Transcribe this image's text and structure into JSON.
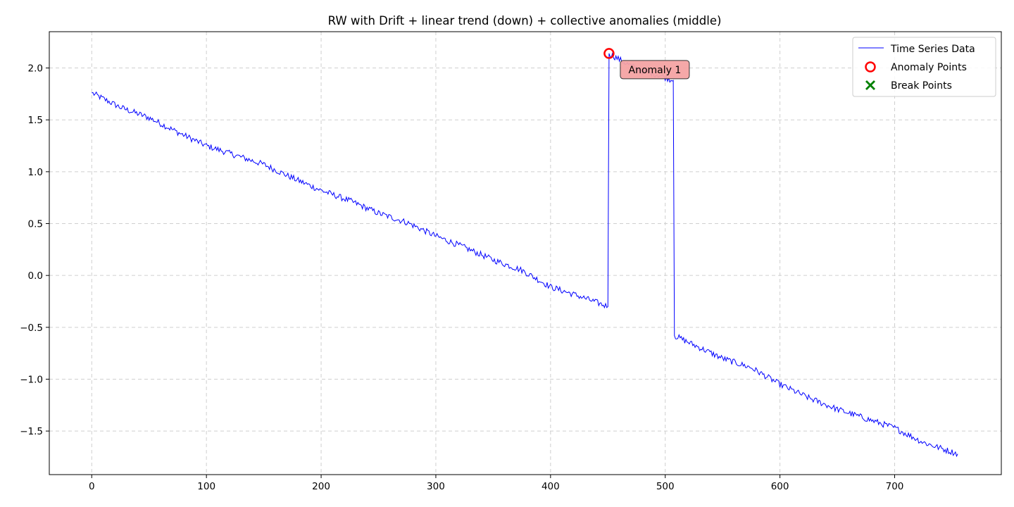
{
  "chart_data": {
    "type": "line",
    "title": "RW with Drift + linear trend (down) + collective anomalies (middle)",
    "xlabel": "",
    "ylabel": "",
    "xlim": [
      -37,
      793
    ],
    "ylim": [
      -1.92,
      2.35
    ],
    "x_ticks": [
      0,
      100,
      200,
      300,
      400,
      500,
      600,
      700
    ],
    "y_ticks": [
      -1.5,
      -1.0,
      -0.5,
      0.0,
      0.5,
      1.0,
      1.5,
      2.0
    ],
    "y_tick_labels": [
      "−1.5",
      "−1.0",
      "−0.5",
      "0.0",
      "0.5",
      "1.0",
      "1.5",
      "2.0"
    ],
    "grid": true,
    "legend_position": "top-right",
    "series": [
      {
        "name": "Time Series Data",
        "color": "#0000ff",
        "n_points": 756,
        "segments": [
          {
            "x_start": 0,
            "x_end": 450,
            "y_start": 1.73,
            "y_end": -0.3
          },
          {
            "x_start": 451,
            "x_end": 507,
            "y_start": 2.14,
            "y_end": 1.88
          },
          {
            "x_start": 508,
            "x_end": 755,
            "y_start": -0.58,
            "y_end": -1.72
          }
        ],
        "keypoints": [
          [
            0,
            1.76
          ],
          [
            25,
            1.62
          ],
          [
            50,
            1.52
          ],
          [
            75,
            1.38
          ],
          [
            100,
            1.25
          ],
          [
            125,
            1.16
          ],
          [
            150,
            1.07
          ],
          [
            175,
            0.94
          ],
          [
            200,
            0.82
          ],
          [
            225,
            0.72
          ],
          [
            250,
            0.6
          ],
          [
            275,
            0.51
          ],
          [
            300,
            0.38
          ],
          [
            325,
            0.27
          ],
          [
            350,
            0.15
          ],
          [
            375,
            0.05
          ],
          [
            400,
            -0.11
          ],
          [
            425,
            -0.2
          ],
          [
            450,
            -0.3
          ],
          [
            451,
            2.14
          ],
          [
            465,
            2.05
          ],
          [
            480,
            1.97
          ],
          [
            495,
            1.93
          ],
          [
            507,
            1.88
          ],
          [
            508,
            -0.58
          ],
          [
            525,
            -0.67
          ],
          [
            550,
            -0.8
          ],
          [
            575,
            -0.89
          ],
          [
            600,
            -1.05
          ],
          [
            625,
            -1.18
          ],
          [
            650,
            -1.29
          ],
          [
            675,
            -1.38
          ],
          [
            700,
            -1.47
          ],
          [
            725,
            -1.61
          ],
          [
            755,
            -1.72
          ]
        ]
      },
      {
        "name": "Anomaly Points",
        "marker": "circle-open",
        "color": "#ff0000",
        "points": [
          [
            451,
            2.14
          ]
        ]
      },
      {
        "name": "Break Points",
        "marker": "x",
        "color": "#008000",
        "points": []
      }
    ],
    "annotations": [
      {
        "text": "Anomaly 1",
        "x": 451,
        "y": 2.14,
        "background": "#f4a3a3"
      }
    ]
  }
}
